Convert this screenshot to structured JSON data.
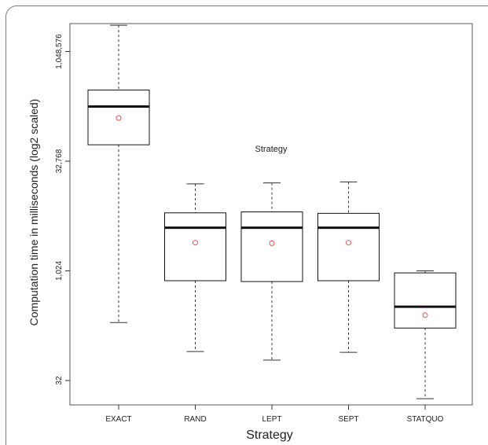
{
  "chart_data": {
    "type": "boxplot",
    "title": "",
    "annotation": "Strategy",
    "xlabel": "Strategy",
    "ylabel": "Computation time in milliseconds (log2 scaled)",
    "y_scale": "log2",
    "y_ticks": [
      32,
      1024,
      32768,
      1048576
    ],
    "y_tick_labels": [
      "32",
      "1,024",
      "32,768",
      "1,048,576"
    ],
    "categories": [
      "EXACT",
      "RAND",
      "LEPT",
      "SEPT",
      "STATQUO"
    ],
    "boxes": [
      {
        "category": "EXACT",
        "min": 200,
        "q1": 55000,
        "median": 184000,
        "q3": 310000,
        "max": 2400000,
        "mean": 128000
      },
      {
        "category": "RAND",
        "min": 80,
        "q1": 750,
        "median": 4000,
        "q3": 6400,
        "max": 16000,
        "mean": 2500
      },
      {
        "category": "LEPT",
        "min": 61,
        "q1": 730,
        "median": 4000,
        "q3": 6600,
        "max": 16500,
        "mean": 2450
      },
      {
        "category": "SEPT",
        "min": 78,
        "q1": 750,
        "median": 4000,
        "q3": 6300,
        "max": 17000,
        "mean": 2500
      },
      {
        "category": "STATQUO",
        "min": 18,
        "q1": 168,
        "median": 330,
        "q3": 960,
        "max": 1024,
        "mean": 252
      }
    ],
    "grid": false,
    "legend": "none",
    "colors": {
      "box": "#111111",
      "median": "#111111",
      "mean_marker": "#e8504f",
      "whisker": "#333333"
    }
  }
}
